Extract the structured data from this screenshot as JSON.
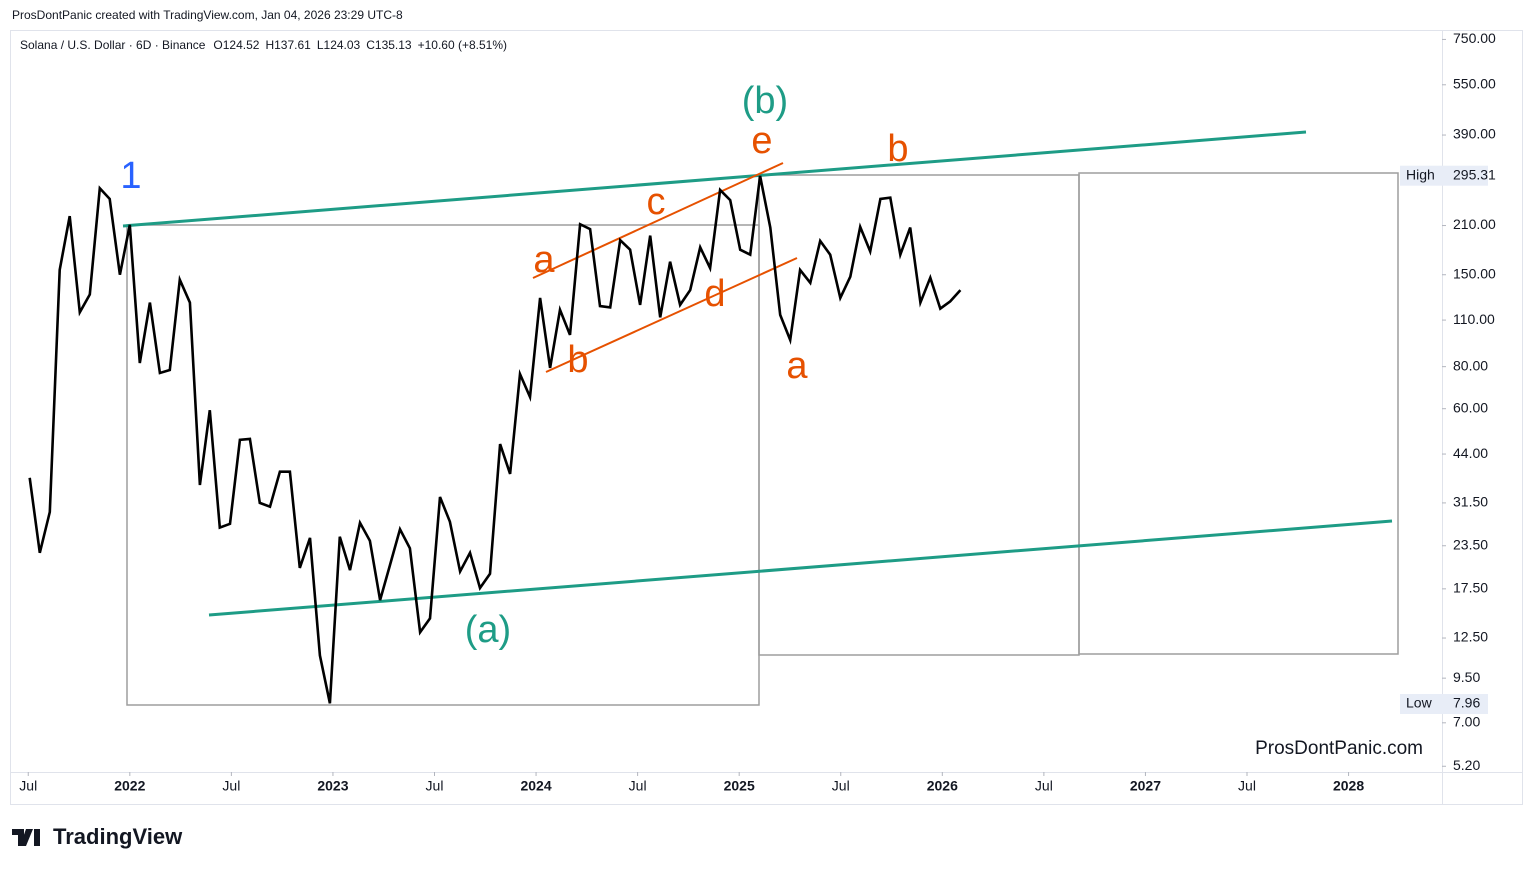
{
  "header": "ProsDontPanic created with TradingView.com, Jan 04, 2026 23:29 UTC-8",
  "footer_logo": "TradingView",
  "chart_data": {
    "type": "line",
    "title": "Solana / U.S. Dollar · 6D · Binance",
    "ohlc": [
      "O124.52",
      "H137.61",
      "L124.03",
      "C135.13",
      "+10.60 (+8.51%)"
    ],
    "watermark": "ProsDontPanic.com",
    "log_scale": true,
    "grid": false,
    "color": "#000000",
    "x": [
      2021.507,
      2021.557,
      2021.606,
      2021.655,
      2021.704,
      2021.754,
      2021.803,
      2021.852,
      2021.901,
      2021.951,
      2022.0,
      2022.049,
      2022.099,
      2022.148,
      2022.197,
      2022.246,
      2022.296,
      2022.345,
      2022.394,
      2022.443,
      2022.493,
      2022.542,
      2022.591,
      2022.64,
      2022.69,
      2022.739,
      2022.788,
      2022.837,
      2022.887,
      2022.936,
      2022.985,
      2023.034,
      2023.084,
      2023.133,
      2023.182,
      2023.232,
      2023.281,
      2023.33,
      2023.379,
      2023.429,
      2023.478,
      2023.527,
      2023.576,
      2023.626,
      2023.675,
      2023.724,
      2023.773,
      2023.823,
      2023.872,
      2023.921,
      2023.97,
      2024.02,
      2024.069,
      2024.118,
      2024.167,
      2024.217,
      2024.266,
      2024.315,
      2024.365,
      2024.414,
      2024.463,
      2024.512,
      2024.562,
      2024.611,
      2024.66,
      2024.709,
      2024.759,
      2024.808,
      2024.857,
      2024.906,
      2024.956,
      2025.005,
      2025.054,
      2025.103,
      2025.153,
      2025.202,
      2025.251,
      2025.3,
      2025.35,
      2025.399,
      2025.448,
      2025.498,
      2025.547,
      2025.596,
      2025.645,
      2025.695,
      2025.744,
      2025.793,
      2025.842,
      2025.892,
      2025.941,
      2025.99,
      2026.039,
      2026.089
    ],
    "values": [
      37.4,
      22.4,
      29.6,
      155,
      224,
      116,
      131,
      271,
      252,
      150,
      211,
      82,
      124,
      76.6,
      78.2,
      145,
      124,
      35.6,
      59.4,
      26.6,
      27.3,
      48.5,
      48.8,
      31.5,
      30.7,
      39,
      39,
      20.2,
      24.8,
      11.1,
      8.0,
      25,
      19.9,
      27.5,
      24.3,
      16.2,
      20.6,
      26.3,
      23.1,
      13.0,
      14.3,
      32.8,
      27.7,
      19.7,
      22.4,
      17.6,
      19.4,
      47.1,
      38.4,
      76,
      65,
      128,
      79.3,
      118,
      99.4,
      212,
      205,
      121,
      120,
      190,
      178,
      122,
      196,
      112,
      164,
      122,
      135,
      181,
      157,
      268,
      250,
      178,
      172,
      295,
      207,
      114,
      96,
      155,
      142,
      189,
      172,
      128,
      148,
      208,
      176,
      252,
      254,
      172,
      207,
      124,
      147,
      119,
      125,
      135
    ],
    "xlim": [
      2021.42,
      2028.46
    ],
    "xticks": [
      {
        "value": 2021.5,
        "label": "Jul"
      },
      2022,
      {
        "value": 2022.5,
        "label": "Jul"
      },
      2023,
      {
        "value": 2023.5,
        "label": "Jul"
      },
      2024,
      {
        "value": 2024.5,
        "label": "Jul"
      },
      2025,
      {
        "value": 2025.5,
        "label": "Jul"
      },
      2026,
      {
        "value": 2026.5,
        "label": "Jul"
      },
      2027,
      {
        "value": 2027.5,
        "label": "Jul"
      },
      2028
    ],
    "ylim": [
      5,
      800
    ],
    "yticks": [
      {
        "value": 750,
        "label": "750.00"
      },
      {
        "value": 550,
        "label": "550.00"
      },
      {
        "value": 390,
        "label": "390.00"
      },
      {
        "value": 210,
        "label": "210.00"
      },
      {
        "value": 150,
        "label": "150.00"
      },
      {
        "value": 110,
        "label": "110.00"
      },
      {
        "value": 80,
        "label": "80.00"
      },
      {
        "value": 60,
        "label": "60.00"
      },
      {
        "value": 44,
        "label": "44.00"
      },
      {
        "value": 31.5,
        "label": "31.50"
      },
      {
        "value": 23.5,
        "label": "23.50"
      },
      {
        "value": 17.5,
        "label": "17.50"
      },
      {
        "value": 12.5,
        "label": "12.50"
      },
      {
        "value": 9.5,
        "label": "9.50"
      },
      {
        "value": 7,
        "label": "7.00"
      },
      {
        "value": 5.2,
        "label": "5.20"
      }
    ],
    "high": {
      "label": "High",
      "value": 295.31
    },
    "low": {
      "label": "Low",
      "value": 7.96
    },
    "annotations": [
      "1",
      "(b)",
      "e",
      "b",
      "c",
      "a",
      "d",
      "b",
      "a",
      "(a)"
    ]
  }
}
